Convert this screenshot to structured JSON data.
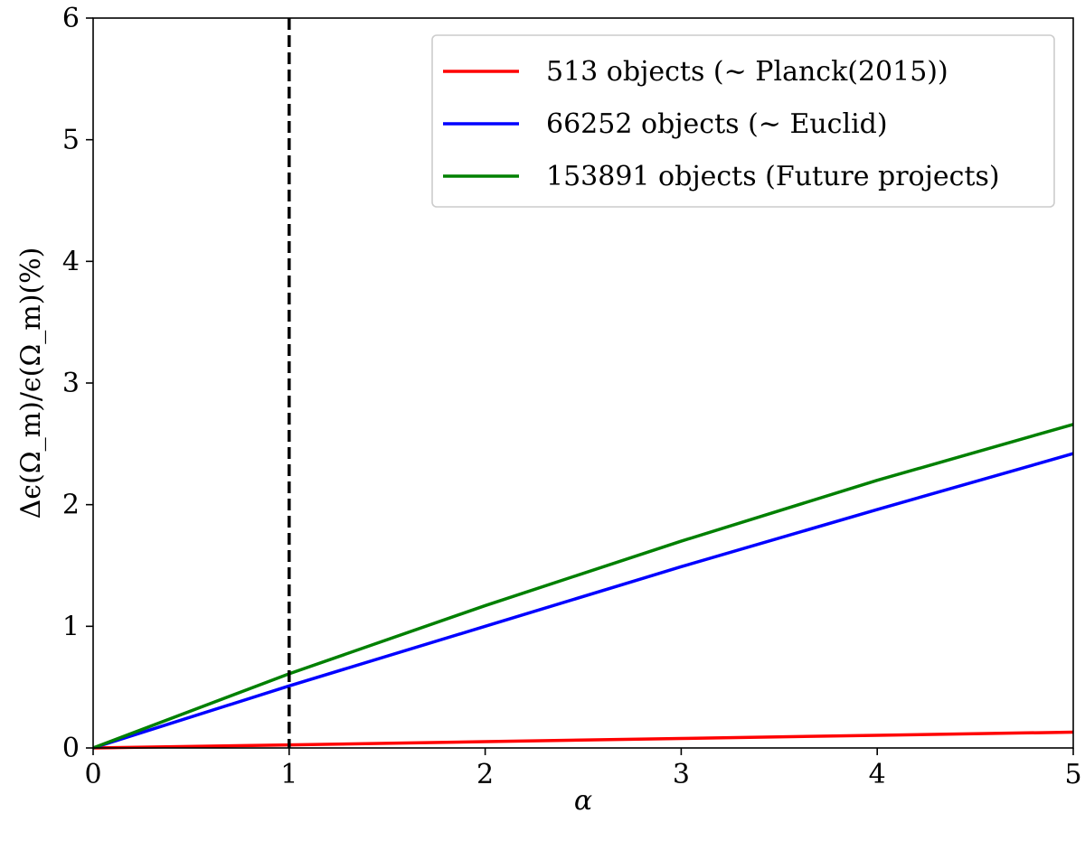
{
  "chart_data": {
    "type": "line",
    "xlabel": "α",
    "ylabel": "Δϵ(Ω_m)/ϵ(Ω_m)(%)",
    "xlim": [
      0,
      5
    ],
    "ylim": [
      0,
      6
    ],
    "x_ticks": [
      0,
      1,
      2,
      3,
      4,
      5
    ],
    "y_ticks": [
      0,
      1,
      2,
      3,
      4,
      5,
      6
    ],
    "x_tick_labels": [
      "0",
      "1",
      "2",
      "3",
      "4",
      "5"
    ],
    "y_tick_labels": [
      "0",
      "1",
      "2",
      "3",
      "4",
      "5",
      "6"
    ],
    "grid": false,
    "legend_position": "top-right",
    "x": [
      0,
      1,
      2,
      3,
      4,
      5
    ],
    "series": [
      {
        "name": "513 objects (∼ Planck(2015))",
        "color": "#ff0000",
        "values": [
          0,
          0.025,
          0.052,
          0.078,
          0.104,
          0.13
        ]
      },
      {
        "name": "66252 objects (∼ Euclid)",
        "color": "#0000ff",
        "values": [
          0,
          0.51,
          1.0,
          1.49,
          1.96,
          2.42
        ]
      },
      {
        "name": "153891 objects (Future projects)",
        "color": "#008000",
        "values": [
          0,
          0.61,
          1.17,
          1.7,
          2.2,
          2.66
        ]
      }
    ],
    "annotations": [
      {
        "type": "vertical-dashed-line",
        "x": 1,
        "color": "#000000"
      }
    ]
  }
}
